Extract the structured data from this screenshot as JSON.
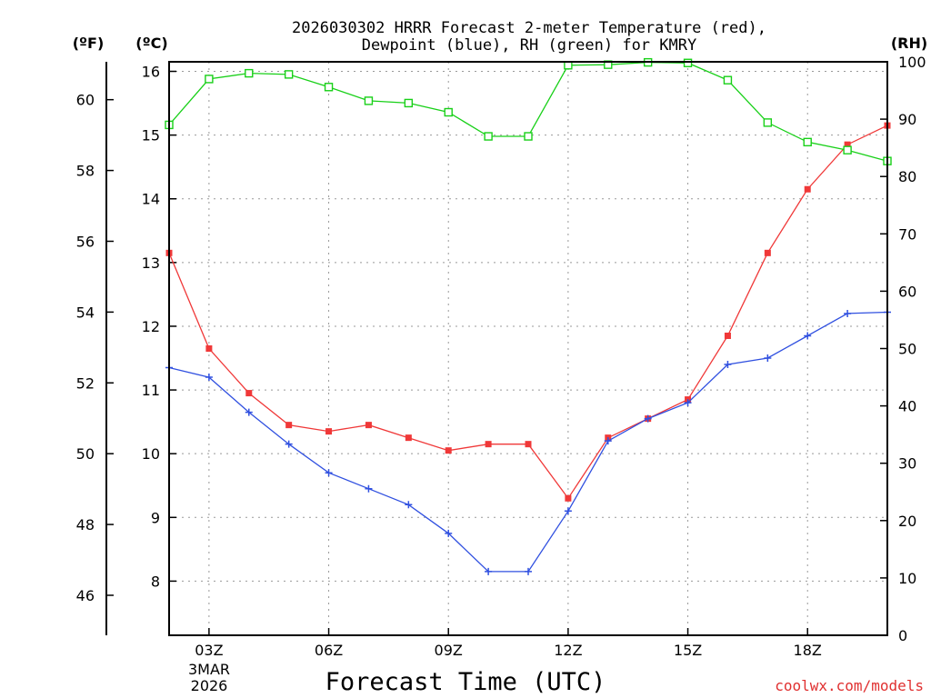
{
  "chart_data": {
    "type": "line",
    "title_line1": "2026030302 HRRR Forecast 2-meter Temperature (red),",
    "title_line2": "Dewpoint (blue), RH (green) for KMRY",
    "xlabel": "Forecast Time (UTC)",
    "credit": "coolwx.com/models",
    "date_label_line1": "3MAR",
    "date_label_line2": "2026",
    "units": {
      "fahrenheit": "(ºF)",
      "celsius": "(ºC)",
      "rh": "(RH)"
    },
    "x_hours": [
      2,
      3,
      4,
      5,
      6,
      7,
      8,
      9,
      10,
      11,
      12,
      13,
      14,
      15,
      16,
      17,
      18,
      19,
      20
    ],
    "x_range": [
      2,
      20
    ],
    "x_ticks": [
      {
        "hour": 3,
        "label": "03Z"
      },
      {
        "hour": 6,
        "label": "06Z"
      },
      {
        "hour": 9,
        "label": "09Z"
      },
      {
        "hour": 12,
        "label": "12Z"
      },
      {
        "hour": 15,
        "label": "15Z"
      },
      {
        "hour": 18,
        "label": "18Z"
      }
    ],
    "celsius_axis": {
      "range": [
        7.15,
        16.15
      ],
      "ticks": [
        "8",
        "9",
        "10",
        "11",
        "12",
        "13",
        "14",
        "15",
        "16"
      ]
    },
    "fahrenheit_axis": {
      "ticks": [
        "46",
        "48",
        "50",
        "52",
        "54",
        "56",
        "58",
        "60"
      ]
    },
    "rh_axis": {
      "range": [
        0,
        100
      ],
      "ticks": [
        "0",
        "10",
        "20",
        "30",
        "40",
        "50",
        "60",
        "70",
        "80",
        "90",
        "100"
      ]
    },
    "series": [
      {
        "name": "Temperature",
        "axis": "celsius",
        "color": "#f03838",
        "marker": "filled-square",
        "values": [
          13.15,
          11.65,
          10.95,
          10.45,
          10.35,
          10.45,
          10.25,
          10.05,
          10.15,
          10.15,
          9.3,
          10.25,
          10.55,
          10.85,
          11.85,
          13.15,
          14.15,
          14.85,
          15.15
        ]
      },
      {
        "name": "Dewpoint",
        "axis": "celsius",
        "color": "#3050e0",
        "marker": "plus",
        "values": [
          11.35,
          11.2,
          10.65,
          10.15,
          9.7,
          9.45,
          9.2,
          8.75,
          8.15,
          8.15,
          9.1,
          10.2,
          10.55,
          10.8,
          11.4,
          11.5,
          11.85,
          12.2,
          12.22
        ]
      },
      {
        "name": "RH",
        "axis": "rh",
        "color": "#18d018",
        "marker": "open-square",
        "values": [
          89,
          97,
          98,
          97.8,
          95.6,
          93.2,
          92.8,
          91.2,
          87,
          87,
          99.4,
          99.5,
          99.9,
          99.8,
          96.8,
          89.4,
          86,
          84.6,
          82.7
        ]
      }
    ]
  }
}
